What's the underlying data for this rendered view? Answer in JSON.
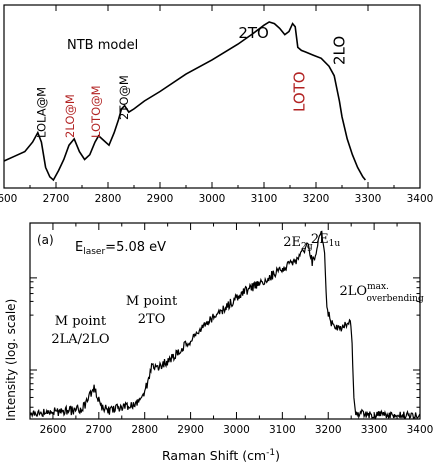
{
  "chart_data": [
    {
      "type": "line",
      "panel": "top",
      "title": "",
      "xlabel": "",
      "ylabel": "",
      "xlim": [
        2600,
        3400
      ],
      "x_ticks": [
        2600,
        2700,
        2800,
        2900,
        3000,
        3100,
        3200,
        3300,
        3400
      ],
      "legend_label": "NTB model",
      "grid": false,
      "series": [
        {
          "x": [
            2600,
            2620,
            2640,
            2655,
            2665,
            2672,
            2680,
            2688,
            2695,
            2705,
            2715,
            2725,
            2735,
            2745,
            2755,
            2765,
            2775,
            2782,
            2792,
            2802,
            2812,
            2820,
            2826,
            2832,
            2840,
            2850,
            2870,
            2900,
            2950,
            3000,
            3050,
            3080,
            3100,
            3110,
            3120,
            3130,
            3140,
            3148,
            3155,
            3160,
            3165,
            3172,
            3180,
            3195,
            3210,
            3225,
            3235,
            3240,
            3245,
            3250,
            3260,
            3270,
            3280,
            3290,
            3295
          ],
          "y": [
            0.12,
            0.15,
            0.18,
            0.24,
            0.3,
            0.24,
            0.08,
            0.02,
            0.0,
            0.06,
            0.13,
            0.22,
            0.26,
            0.18,
            0.13,
            0.16,
            0.24,
            0.28,
            0.25,
            0.22,
            0.3,
            0.38,
            0.45,
            0.47,
            0.43,
            0.45,
            0.5,
            0.56,
            0.67,
            0.76,
            0.86,
            0.93,
            0.98,
            1.0,
            0.99,
            0.96,
            0.92,
            0.94,
            0.99,
            0.97,
            0.84,
            0.82,
            0.81,
            0.79,
            0.77,
            0.72,
            0.66,
            0.58,
            0.5,
            0.4,
            0.26,
            0.16,
            0.08,
            0.02,
            0.0
          ]
        }
      ],
      "annotations": [
        {
          "text": "LOLA@M",
          "color": "#000000",
          "x": 2680
        },
        {
          "text": "2LO@M",
          "color": "#b22222",
          "x": 2735
        },
        {
          "text": "LOTO@M",
          "color": "#b22222",
          "x": 2785
        },
        {
          "text": "2TO@M",
          "color": "#000000",
          "x": 2838
        },
        {
          "text": "2TO",
          "color": "#000000",
          "x": 3080
        },
        {
          "text": "LOTO",
          "color": "#b22222",
          "x": 3178
        },
        {
          "text": "2LO",
          "color": "#000000",
          "x": 3255
        }
      ]
    },
    {
      "type": "line",
      "panel": "bottom",
      "title": "",
      "xlabel": "Raman Shift (cm",
      "xlabel_sup": "-1",
      "xlabel_end": ")",
      "ylabel": "Intensity (log. scale)",
      "xlim": [
        2550,
        3400
      ],
      "x_ticks": [
        2600,
        2700,
        2800,
        2900,
        3000,
        3100,
        3200,
        3300,
        3400
      ],
      "y_scale": "log",
      "grid": false,
      "panel_label": "(a)",
      "laser": {
        "base": "E",
        "sub": "laser",
        "rest": "=5.08 eV"
      },
      "series": [
        {
          "x": [
            2550,
            2580,
            2610,
            2640,
            2660,
            2670,
            2680,
            2688,
            2695,
            2705,
            2720,
            2740,
            2760,
            2780,
            2795,
            2805,
            2812,
            2818,
            2825,
            2840,
            2870,
            2900,
            2930,
            2960,
            2990,
            3020,
            3050,
            3080,
            3110,
            3130,
            3145,
            3155,
            3165,
            3172,
            3180,
            3186,
            3192,
            3197,
            3205,
            3215,
            3225,
            3235,
            3243,
            3248,
            3252,
            3256,
            3260,
            3275,
            3300,
            3330,
            3360,
            3400
          ],
          "y": [
            0.02,
            0.03,
            0.035,
            0.04,
            0.05,
            0.07,
            0.12,
            0.17,
            0.13,
            0.06,
            0.04,
            0.05,
            0.06,
            0.08,
            0.1,
            0.18,
            0.24,
            0.3,
            0.27,
            0.29,
            0.35,
            0.42,
            0.5,
            0.57,
            0.63,
            0.69,
            0.73,
            0.78,
            0.82,
            0.86,
            0.9,
            0.94,
            0.85,
            0.88,
            0.97,
            1.0,
            0.88,
            0.6,
            0.52,
            0.5,
            0.49,
            0.5,
            0.52,
            0.54,
            0.4,
            0.12,
            0.04,
            0.02,
            0.015,
            0.012,
            0.01,
            0.01
          ]
        }
      ],
      "annotations": [
        {
          "lines": [
            "M point",
            "2LA/2LO"
          ],
          "x": 2660
        },
        {
          "lines": [
            "M point",
            "2TO"
          ],
          "x": 2815
        },
        {
          "base": "2E",
          "sub": "2g",
          "x": 3150
        },
        {
          "base": "2E",
          "sub": "1u",
          "x": 3210
        },
        {
          "base": "2LO",
          "sup": "max.",
          "sub": "overbending",
          "x": 3290
        }
      ]
    }
  ],
  "colors": {
    "axis": "#000000",
    "line": "#000000",
    "red": "#b22222"
  }
}
